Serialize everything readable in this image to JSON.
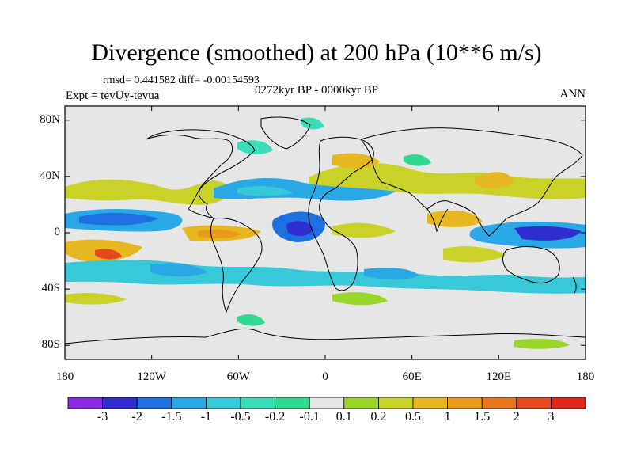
{
  "title": "Divergence (smoothed) at 200 hPa (10**6 m/s)",
  "stats": "rmsd= 0.441582 diff= -0.00154593",
  "experiment": "Expt = tevUy-tevua",
  "period": "0272kyr BP - 0000kyr BP",
  "season": "ANN",
  "axes": {
    "lat_ticks": [
      "80N",
      "40N",
      "0",
      "40S",
      "80S"
    ],
    "lon_ticks": [
      "180",
      "120W",
      "60W",
      "0",
      "60E",
      "120E",
      "180"
    ]
  },
  "colorbar": {
    "labels": [
      "-3",
      "-2",
      "-1.5",
      "-1",
      "-0.5",
      "-0.2",
      "-0.1",
      "0.1",
      "0.2",
      "0.5",
      "1",
      "1.5",
      "2",
      "3"
    ],
    "colors": [
      "#8a2be2",
      "#2f2fd0",
      "#1e6fe0",
      "#2aa8e6",
      "#38c8d8",
      "#3cdcb8",
      "#30d890",
      "#e6e6e6",
      "#9ad62a",
      "#c8d228",
      "#e6b71e",
      "#e89a1c",
      "#e6771e",
      "#e24a1e",
      "#e02818"
    ]
  }
}
